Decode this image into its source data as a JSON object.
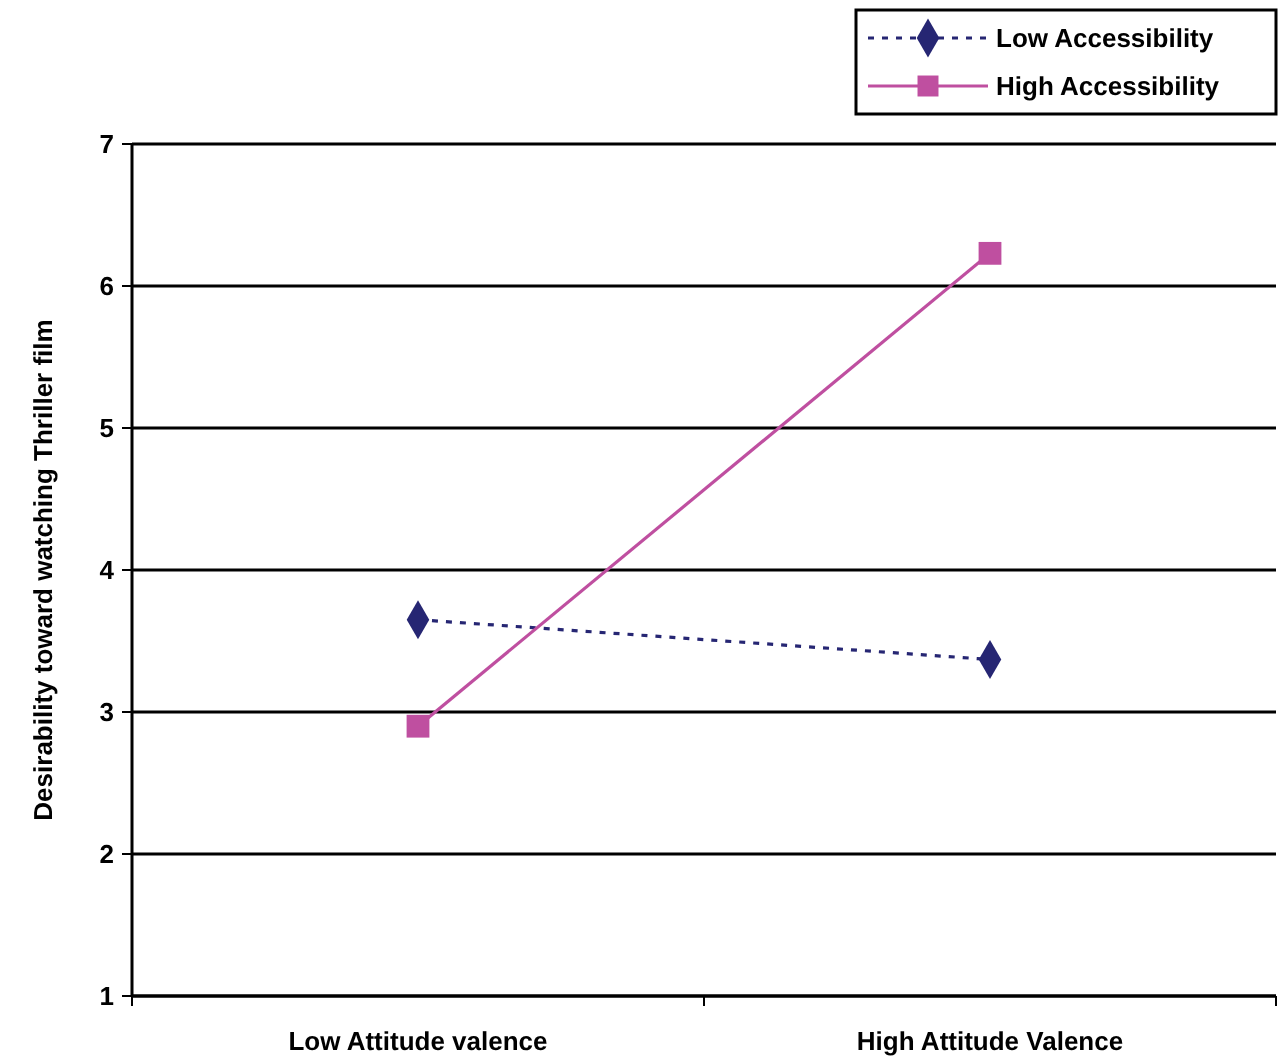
{
  "chart_data": {
    "type": "line",
    "ylabel": "Desirability toward watching Thriller film",
    "categories": [
      "Low Attitude valence",
      "High Attitude Valence"
    ],
    "ylim": [
      1,
      7
    ],
    "yticks": [
      1,
      2,
      3,
      4,
      5,
      6,
      7
    ],
    "grid": "y",
    "legend": "top right",
    "series": [
      {
        "name": "Low Accessibility",
        "color": "#262673",
        "values": [
          3.65,
          3.37
        ],
        "marker": "diamond",
        "line_style": "dotted"
      },
      {
        "name": "High Accessibility",
        "color": "#bf4fa0",
        "values": [
          2.9,
          6.23
        ],
        "marker": "square",
        "line_style": "solid"
      }
    ]
  }
}
